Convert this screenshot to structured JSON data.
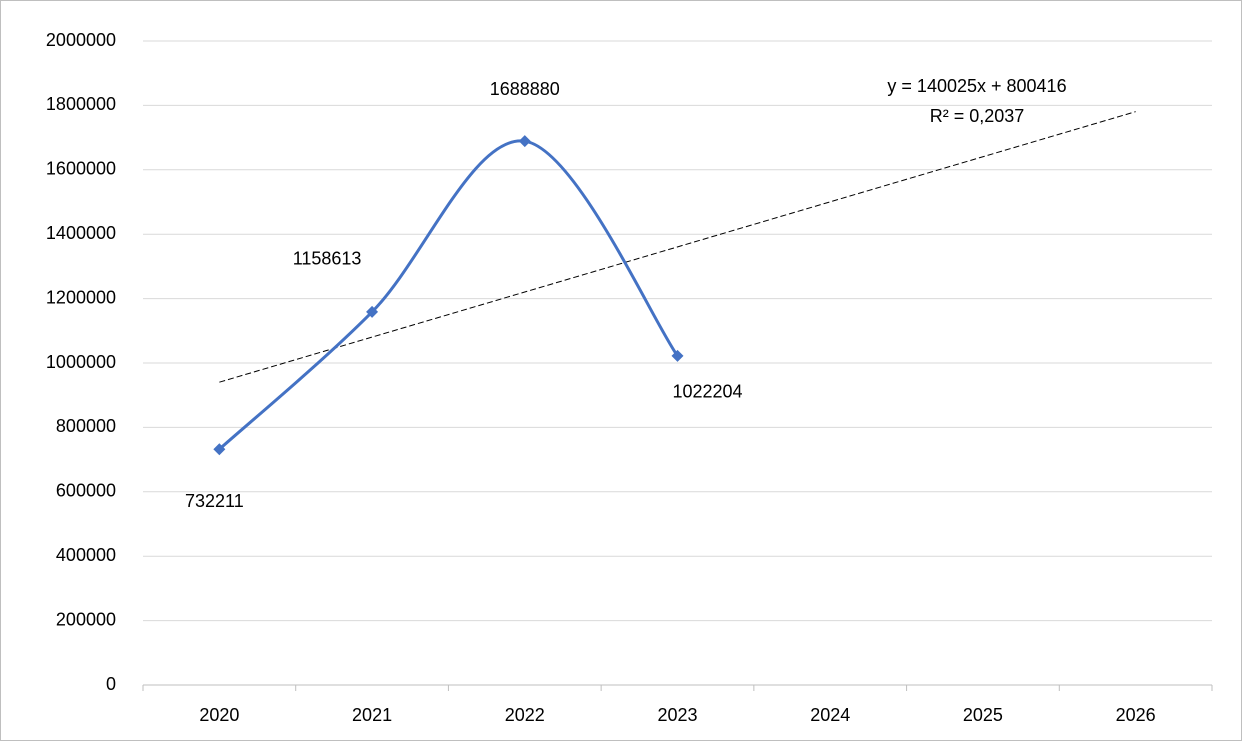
{
  "chart_data": {
    "type": "line",
    "categories": [
      "2020",
      "2021",
      "2022",
      "2023",
      "2024",
      "2025",
      "2026"
    ],
    "series": [
      {
        "color": "#4472c4",
        "values": [
          732211,
          1158613,
          1688880,
          1022204,
          null,
          null,
          null
        ]
      }
    ],
    "ylim": [
      0,
      2000000
    ],
    "yticks": [
      0,
      200000,
      400000,
      600000,
      800000,
      1000000,
      1200000,
      1400000,
      1600000,
      1800000,
      2000000
    ],
    "grid": true,
    "smooth": true,
    "data_labels": true,
    "trendline": {
      "slope": 140025,
      "intercept": 800416,
      "equation": "y = 140025x + 800416",
      "r2_label": "R² = 0,2037"
    }
  }
}
